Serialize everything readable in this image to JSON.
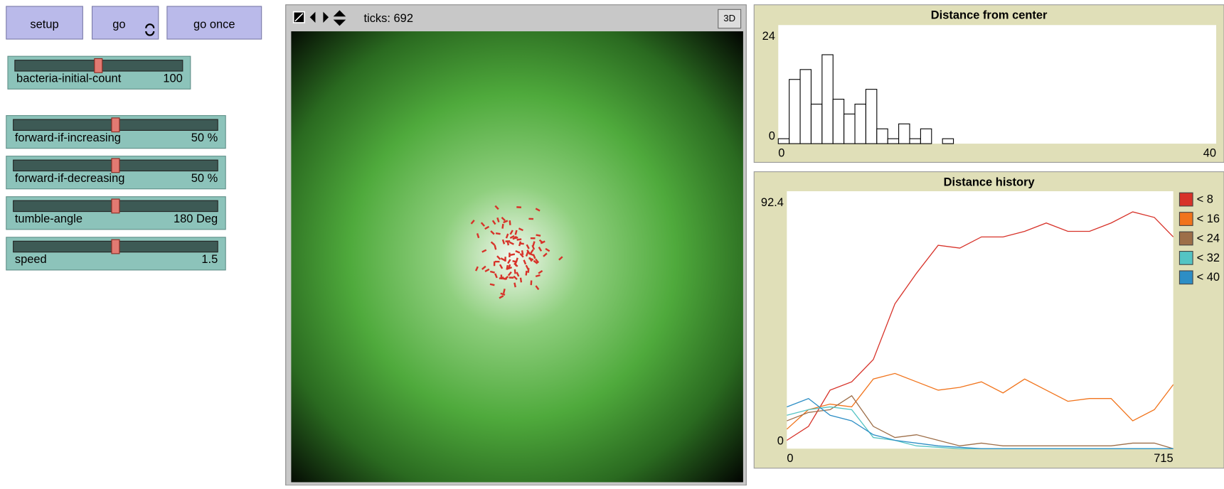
{
  "buttons": [
    {
      "label": "setup"
    },
    {
      "label": "go"
    },
    {
      "label": "go once"
    }
  ],
  "sliders": [
    {
      "name": "bacteria-initial-count",
      "value": "100"
    },
    {
      "name": "forward-if-increasing",
      "value": "50 %"
    },
    {
      "name": "forward-if-decreasing",
      "value": "50 %"
    },
    {
      "name": "tumble-angle",
      "value": "180 Deg"
    },
    {
      "name": "speed",
      "value": "1.5"
    }
  ],
  "view": {
    "ticks": "ticks: 692",
    "three_d": "3D"
  },
  "chart_data": [
    {
      "type": "histogram",
      "title": "Distance from center",
      "bins": [
        0,
        1,
        2,
        3,
        4,
        5,
        6,
        7,
        8,
        9,
        10,
        11,
        12,
        13,
        14,
        15,
        16
      ],
      "values": [
        1,
        13,
        15,
        8,
        18,
        9,
        6,
        8,
        11,
        3,
        1,
        4,
        1,
        3,
        0,
        1
      ],
      "xlim": [
        0,
        40
      ],
      "ylim": [
        0,
        24
      ],
      "xticks": [
        0,
        40
      ],
      "yticks": [
        0,
        24
      ],
      "color": "#000000"
    },
    {
      "type": "line",
      "title": "Distance history",
      "x": [
        0,
        40,
        80,
        120,
        160,
        200,
        240,
        280,
        320,
        360,
        400,
        440,
        480,
        520,
        560,
        600,
        640,
        680,
        715
      ],
      "series": [
        {
          "name": "< 8",
          "color": "#d73229",
          "values": [
            3,
            8,
            21,
            24,
            32,
            52,
            63,
            73,
            72,
            76,
            76,
            78,
            81,
            78,
            78,
            81,
            85,
            83,
            76
          ]
        },
        {
          "name": "< 16",
          "color": "#f1741c",
          "values": [
            7,
            14,
            16,
            15,
            25,
            27,
            24,
            21,
            22,
            24,
            20,
            25,
            21,
            17,
            18,
            18,
            10,
            14,
            23
          ]
        },
        {
          "name": "< 24",
          "color": "#9d6e48",
          "values": [
            10,
            13,
            14,
            19,
            8,
            4,
            5,
            3,
            1,
            2,
            1,
            1,
            1,
            1,
            1,
            1,
            2,
            2,
            0
          ]
        },
        {
          "name": "< 32",
          "color": "#54c4c4",
          "values": [
            12,
            14,
            15,
            14,
            4,
            3,
            1,
            0.5,
            0,
            0,
            0,
            0,
            0,
            0,
            0,
            0,
            0,
            0,
            0
          ]
        },
        {
          "name": "< 40",
          "color": "#2d8ec5",
          "values": [
            15,
            18,
            12,
            10,
            5,
            3,
            2,
            1,
            0.5,
            0,
            0,
            0,
            0,
            0,
            0,
            0,
            0,
            0,
            0
          ]
        }
      ],
      "xlim": [
        0,
        715
      ],
      "ylim": [
        0,
        92.4
      ],
      "xticks": [
        0,
        715
      ],
      "yticks": [
        0,
        92.4
      ]
    }
  ]
}
